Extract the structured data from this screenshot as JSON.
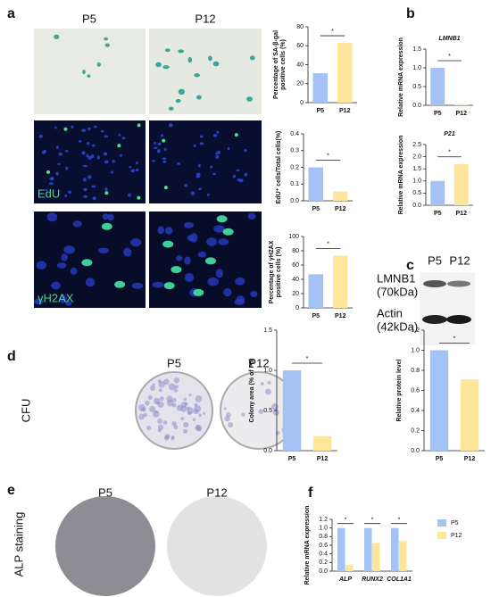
{
  "panel_labels": [
    "a",
    "b",
    "c",
    "d",
    "e",
    "f"
  ],
  "images": {
    "a_columns": [
      "P5",
      "P12"
    ],
    "a_rows": [
      "EdU",
      "γH2AX"
    ],
    "c_columns": [
      "P5",
      "P12"
    ],
    "c_rows": [
      [
        "LMNB1",
        "(70kDa)"
      ],
      [
        "Actin",
        "(42kDa)"
      ]
    ],
    "d_columns": [
      "P5",
      "P12"
    ],
    "d_row": "CFU",
    "e_columns": [
      "P5",
      "P12"
    ],
    "e_row": "ALP staining"
  },
  "chart_data": [
    {
      "type": "bar",
      "categories": [
        "P5",
        "P12"
      ],
      "values": [
        31,
        63
      ],
      "colors": [
        "#a4c2f4",
        "#fde59a"
      ],
      "ylabel": [
        "Percentage of SA-β-gal",
        "positive cells (%)"
      ],
      "ylim": [
        0,
        80
      ],
      "yticks": [
        0,
        20,
        40,
        60,
        80
      ],
      "annotations": [
        "*"
      ]
    },
    {
      "type": "bar",
      "categories": [
        "P5",
        "P12"
      ],
      "values": [
        0.2,
        0.055
      ],
      "colors": [
        "#a4c2f4",
        "#fde59a"
      ],
      "ylabel": [
        "EdU⁺ cells/Total cells(%)"
      ],
      "ylim": [
        0,
        0.4
      ],
      "yticks": [
        {
          "value": 0,
          "label": "0.0"
        },
        0.1,
        0.2,
        0.3,
        0.4
      ],
      "annotations": [
        "*"
      ]
    },
    {
      "type": "bar",
      "categories": [
        "P5",
        "P12"
      ],
      "values": [
        47,
        73
      ],
      "colors": [
        "#a4c2f4",
        "#fde59a"
      ],
      "ylabel": [
        "Percentage of γH2AX",
        "positive cells (%)"
      ],
      "ylim": [
        0,
        100
      ],
      "yticks": [
        0,
        20,
        40,
        60,
        80,
        100
      ],
      "annotations": [
        "*"
      ]
    },
    {
      "type": "bar",
      "title": "LMNB1",
      "categories": [
        "P5",
        "P12"
      ],
      "values": [
        1.0,
        0.03
      ],
      "colors": [
        "#a4c2f4",
        "#fde59a"
      ],
      "ylabel": [
        "Relative mRNA expression"
      ],
      "ylim": [
        0,
        1.5
      ],
      "yticks": [
        {
          "value": 0,
          "label": "0.0"
        },
        0.5,
        {
          "value": 1,
          "label": "1.0"
        },
        1.5
      ],
      "annotations": [
        "*"
      ]
    },
    {
      "type": "bar",
      "title": "P21",
      "categories": [
        "P5",
        "P12"
      ],
      "values": [
        1.0,
        1.7
      ],
      "colors": [
        "#a4c2f4",
        "#fde59a"
      ],
      "ylabel": [
        "Relative mRNA expression"
      ],
      "ylim": [
        0,
        2.5
      ],
      "yticks": [
        {
          "value": 0,
          "label": "0.0"
        },
        0.5,
        {
          "value": 1,
          "label": "1.0"
        },
        1.5,
        {
          "value": 2,
          "label": "2.0"
        },
        2.5
      ],
      "annotations": [
        "*"
      ]
    },
    {
      "type": "bar",
      "categories": [
        "P5",
        "P12"
      ],
      "values": [
        1.0,
        0.18
      ],
      "colors": [
        "#a4c2f4",
        "#fde59a"
      ],
      "ylabel": [
        "Colony area  (% of P5)"
      ],
      "ylim": [
        0,
        1.5
      ],
      "yticks": [
        {
          "value": 0,
          "label": "0.0"
        },
        0.5,
        {
          "value": 1,
          "label": "1.0"
        },
        1.5
      ],
      "annotations": [
        "*"
      ]
    },
    {
      "type": "bar",
      "categories": [
        "P5",
        "P12"
      ],
      "values": [
        1.0,
        0.71
      ],
      "colors": [
        "#a4c2f4",
        "#fde59a"
      ],
      "ylabel": [
        "Relative protein level"
      ],
      "ylim": [
        0,
        1.2
      ],
      "yticks": [
        {
          "value": 0,
          "label": "0.0"
        },
        0.2,
        0.4,
        0.6,
        0.8,
        {
          "value": 1,
          "label": "1.0"
        },
        1.2
      ],
      "annotations": [
        "*"
      ]
    },
    {
      "type": "bar",
      "categories": [
        "ALP",
        "RUNX2",
        "COL1A1"
      ],
      "series": [
        {
          "name": "P5",
          "color": "#a4c2f4",
          "values": [
            1.0,
            1.0,
            1.0
          ]
        },
        {
          "name": "P12",
          "color": "#fde59a",
          "values": [
            0.15,
            0.65,
            0.7
          ]
        }
      ],
      "ylabel": [
        "Relative mRNA expression"
      ],
      "ylim": [
        0,
        1.2
      ],
      "yticks": [
        {
          "value": 0,
          "label": "0.0"
        },
        0.2,
        0.4,
        0.6,
        0.8,
        {
          "value": 1,
          "label": "1.0"
        },
        1.2
      ],
      "annotations": [
        "*",
        "*",
        "*"
      ],
      "legend": "right"
    }
  ]
}
